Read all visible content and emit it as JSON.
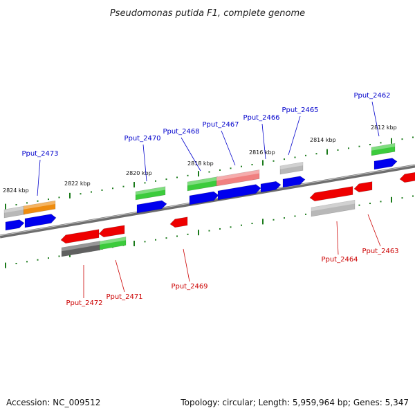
{
  "title": "Pseudomonas putida F1, complete genome",
  "footer": {
    "accession": "Accession: NC_009512",
    "topology": "Topology: circular; Length: 5,959,964 bp; Genes: 5,347"
  },
  "colors": {
    "plus_label": "#0000cc",
    "minus_label": "#cc0000",
    "tick": "#1a7a1a"
  },
  "scale_labels": [
    "2824 kbp",
    "2822 kbp",
    "2820 kbp",
    "2818 kbp",
    "2816 kbp",
    "2814 kbp",
    "2812 kbp"
  ],
  "gene_labels": {
    "top": [
      "Pput_2473",
      "Pput_2470",
      "Pput_2468",
      "Pput_2467",
      "Pput_2466",
      "Pput_2465",
      "Pput_2462"
    ],
    "bottom": [
      "Pput_2472",
      "Pput_2471",
      "Pput_2469",
      "Pput_2464",
      "Pput_2463"
    ]
  }
}
